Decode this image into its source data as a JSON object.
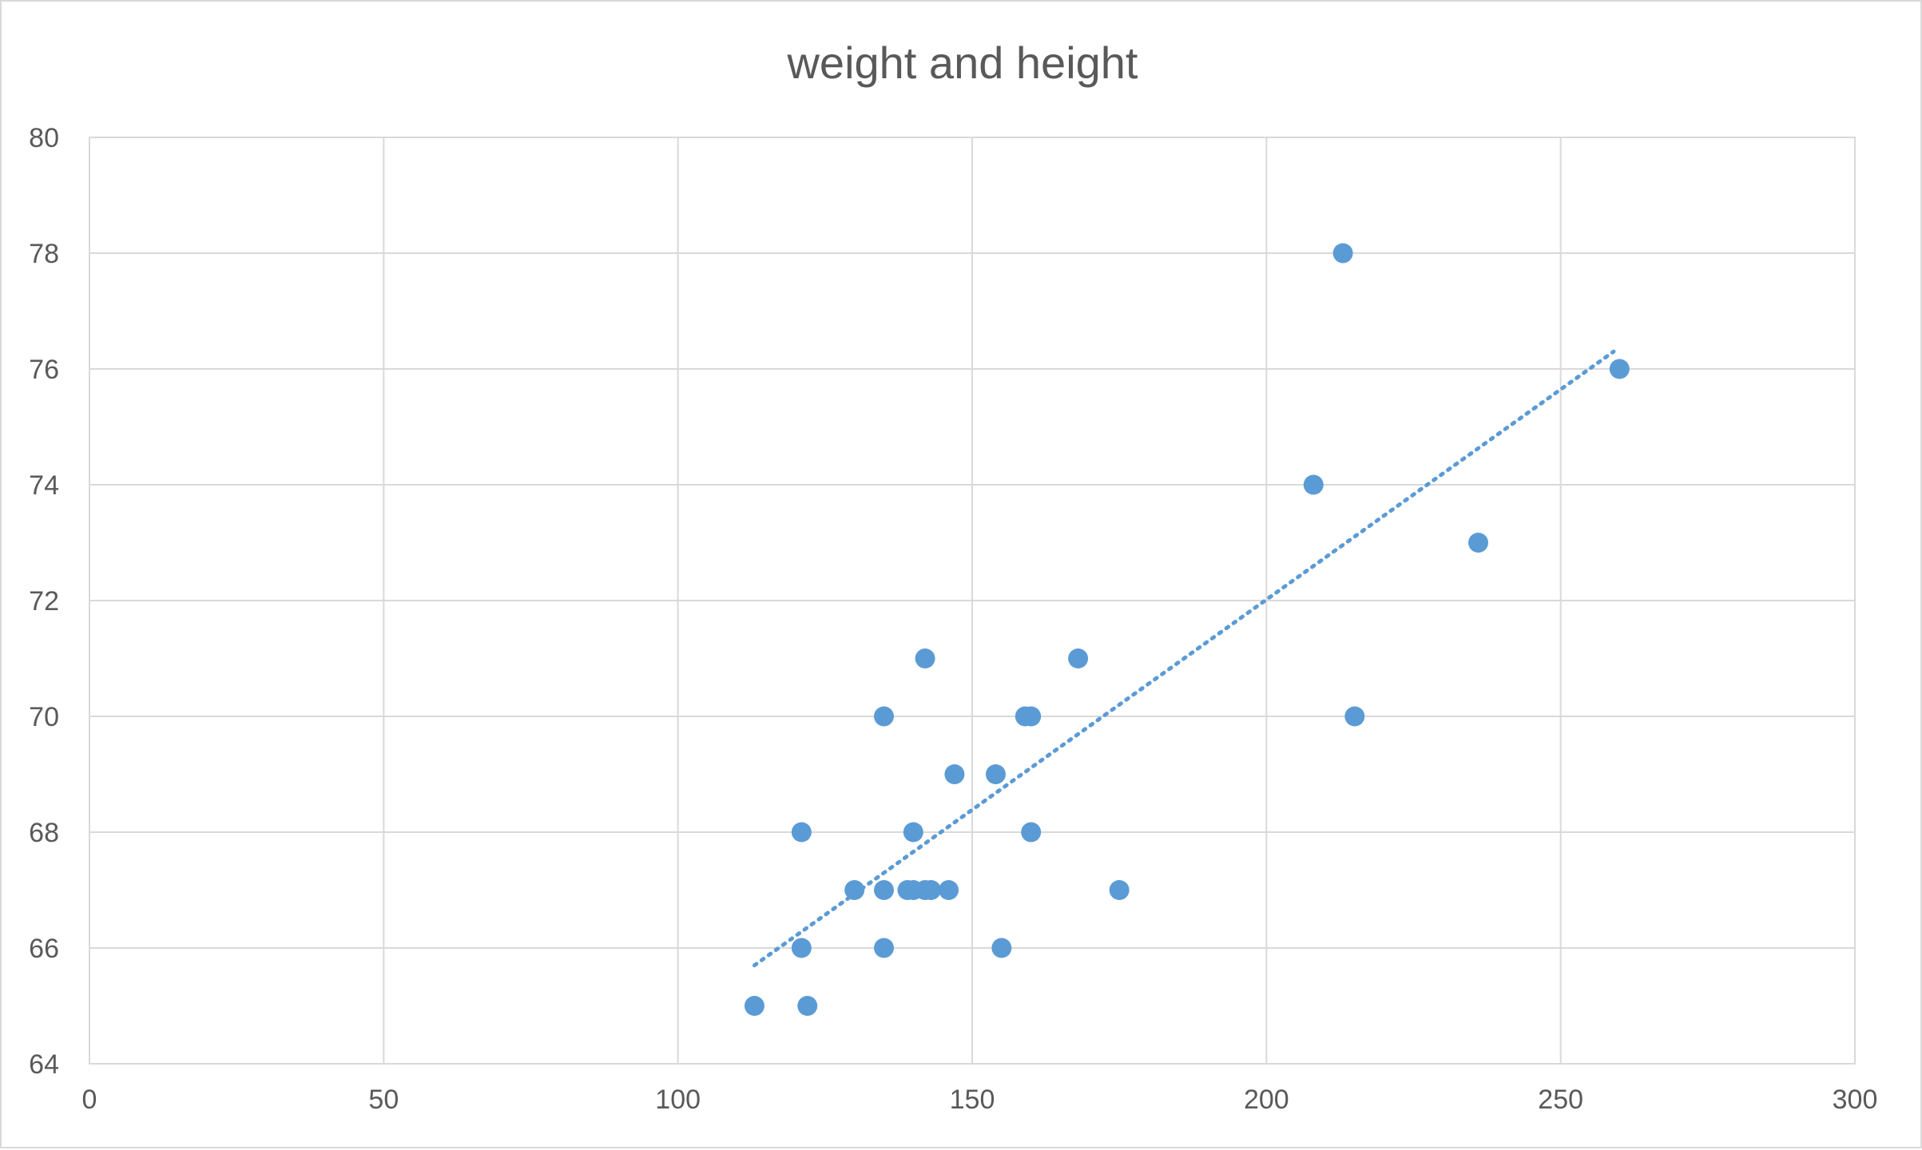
{
  "chart_data": {
    "type": "scatter",
    "title": "weight and height",
    "xlabel": "",
    "ylabel": "",
    "xlim": [
      0,
      300
    ],
    "ylim": [
      64,
      80
    ],
    "x_ticks": [
      0,
      50,
      100,
      150,
      200,
      250,
      300
    ],
    "y_ticks": [
      64,
      66,
      68,
      70,
      72,
      74,
      76,
      78,
      80
    ],
    "grid": true,
    "legend": "none",
    "colors": {
      "points": "#5b9bd5",
      "trendline": "#5b9bd5",
      "grid": "#d9d9d9",
      "text": "#595959"
    },
    "series": [
      {
        "points": [
          {
            "x": 113,
            "y": 65
          },
          {
            "x": 121,
            "y": 66
          },
          {
            "x": 121,
            "y": 68
          },
          {
            "x": 122,
            "y": 65
          },
          {
            "x": 130,
            "y": 67
          },
          {
            "x": 135,
            "y": 66
          },
          {
            "x": 135,
            "y": 67
          },
          {
            "x": 135,
            "y": 70
          },
          {
            "x": 139,
            "y": 67
          },
          {
            "x": 140,
            "y": 67
          },
          {
            "x": 140,
            "y": 68
          },
          {
            "x": 142,
            "y": 67
          },
          {
            "x": 142,
            "y": 71
          },
          {
            "x": 143,
            "y": 67
          },
          {
            "x": 146,
            "y": 67
          },
          {
            "x": 147,
            "y": 69
          },
          {
            "x": 154,
            "y": 69
          },
          {
            "x": 155,
            "y": 66
          },
          {
            "x": 159,
            "y": 70
          },
          {
            "x": 160,
            "y": 70
          },
          {
            "x": 160,
            "y": 68
          },
          {
            "x": 168,
            "y": 71
          },
          {
            "x": 175,
            "y": 67
          },
          {
            "x": 208,
            "y": 74
          },
          {
            "x": 213,
            "y": 78
          },
          {
            "x": 215,
            "y": 70
          },
          {
            "x": 236,
            "y": 73
          },
          {
            "x": 260,
            "y": 76
          }
        ]
      }
    ],
    "trendline": {
      "type": "linear",
      "x_start": 113,
      "y_start": 65.7,
      "x_end": 259,
      "y_end": 76.3
    }
  }
}
